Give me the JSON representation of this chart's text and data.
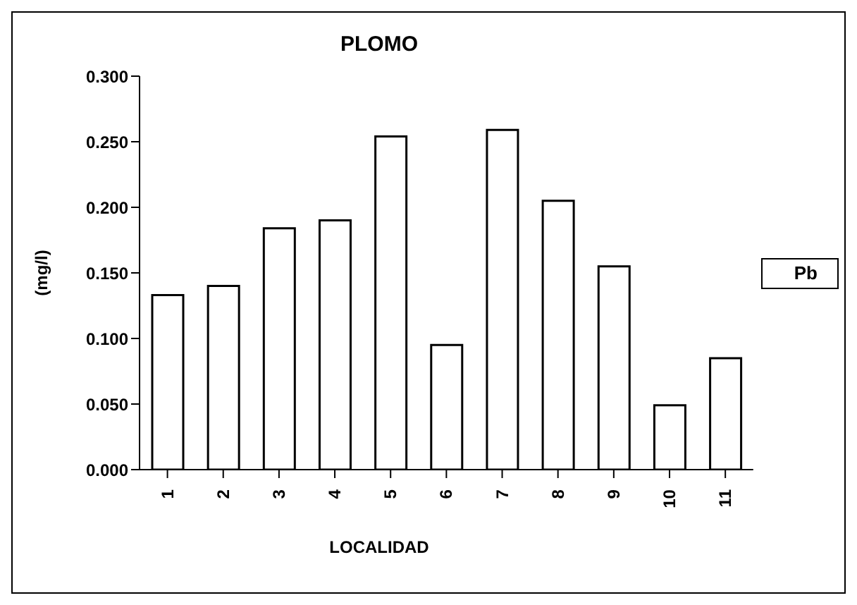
{
  "chart_data": {
    "type": "bar",
    "title": "PLOMO",
    "xlabel": "LOCALIDAD",
    "ylabel": "(mg/l)",
    "categories": [
      "1",
      "2",
      "3",
      "4",
      "5",
      "6",
      "7",
      "8",
      "9",
      "10",
      "11"
    ],
    "series": [
      {
        "name": "Pb",
        "color": "#ffffff",
        "values": [
          0.133,
          0.14,
          0.184,
          0.19,
          0.254,
          0.095,
          0.259,
          0.205,
          0.155,
          0.049,
          0.085
        ]
      }
    ],
    "ylim": [
      0,
      0.3
    ],
    "yticks": [
      {
        "value": 0,
        "label": "0.000"
      },
      {
        "value": 0.05,
        "label": "0.050"
      },
      {
        "value": 0.1,
        "label": "0.100"
      },
      {
        "value": 0.15,
        "label": "0.150"
      },
      {
        "value": 0.2,
        "label": "0.200"
      },
      {
        "value": 0.25,
        "label": "0.250"
      },
      {
        "value": 0.3,
        "label": "0.300"
      }
    ],
    "legend": "right",
    "grid": false
  }
}
